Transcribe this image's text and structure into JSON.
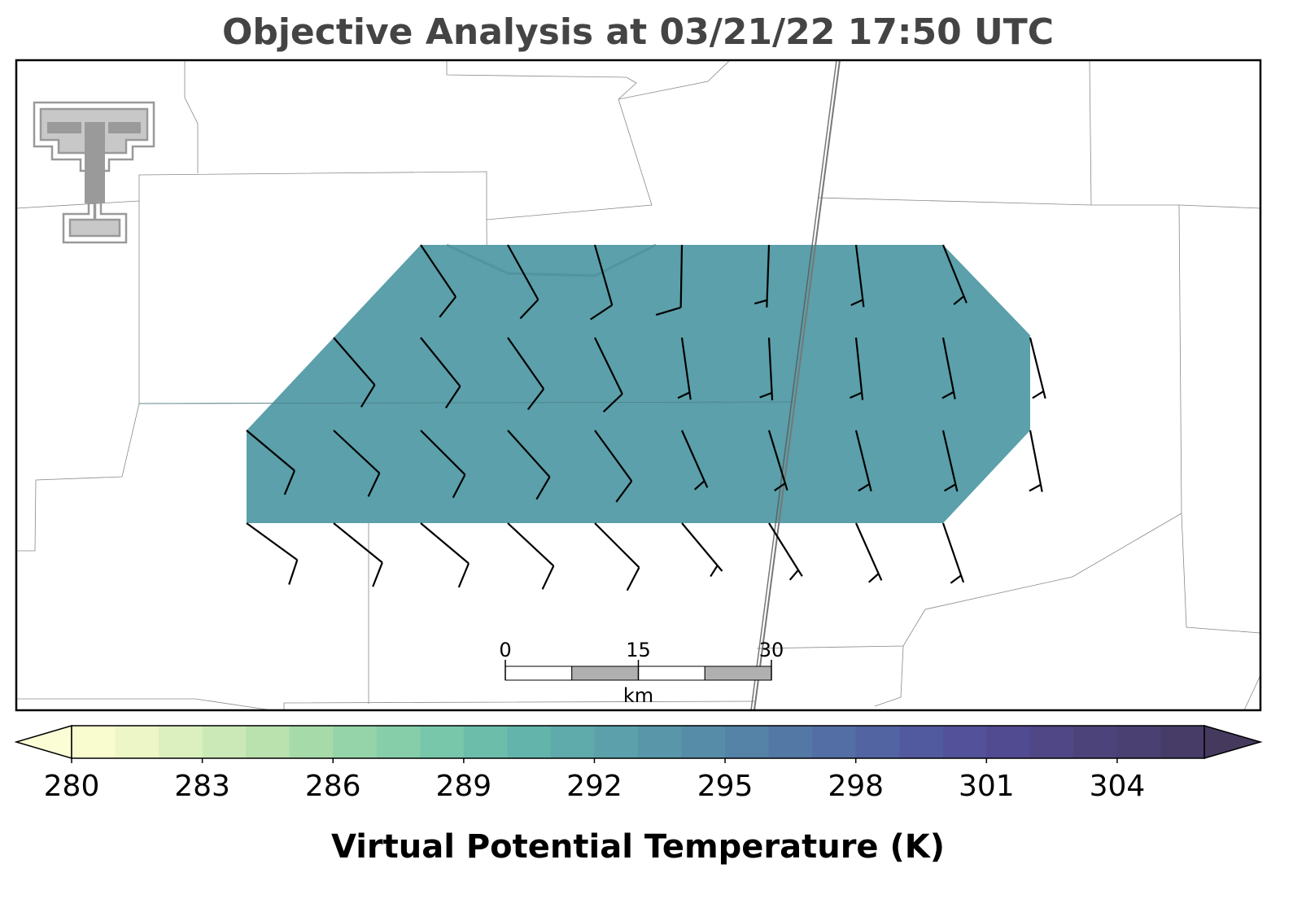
{
  "title": "Objective Analysis at 03/21/22 17:50 UTC",
  "field": {
    "value": 292
  },
  "wind_barbs": [
    [
      null,
      null,
      {
        "direction": 146,
        "speed": 10
      },
      {
        "direction": 151,
        "speed": 10
      },
      {
        "direction": 164,
        "speed": 10
      },
      {
        "direction": 181,
        "speed": 10
      },
      {
        "direction": 182,
        "speed": 5
      },
      {
        "direction": 173,
        "speed": 5
      },
      {
        "direction": 158,
        "speed": 5
      },
      null
    ],
    [
      null,
      {
        "direction": 139,
        "speed": 10
      },
      {
        "direction": 141,
        "speed": 10
      },
      {
        "direction": 145,
        "speed": 10
      },
      {
        "direction": 154,
        "speed": 10
      },
      {
        "direction": 172,
        "speed": 5
      },
      {
        "direction": 177,
        "speed": 5
      },
      {
        "direction": 174,
        "speed": 5
      },
      {
        "direction": 169,
        "speed": 5
      },
      {
        "direction": 166,
        "speed": 5
      }
    ],
    [
      {
        "direction": 130,
        "speed": 10
      },
      {
        "direction": 133,
        "speed": 10
      },
      {
        "direction": 135,
        "speed": 10
      },
      {
        "direction": 138,
        "speed": 10
      },
      {
        "direction": 144,
        "speed": 10
      },
      {
        "direction": 156,
        "speed": 5
      },
      {
        "direction": 163,
        "speed": 5
      },
      {
        "direction": 166,
        "speed": 5
      },
      {
        "direction": 167,
        "speed": 5
      },
      {
        "direction": 169,
        "speed": 5
      }
    ],
    [
      {
        "direction": 126,
        "speed": 10
      },
      {
        "direction": 129,
        "speed": 10
      },
      {
        "direction": 130,
        "speed": 10
      },
      {
        "direction": 133,
        "speed": 10
      },
      {
        "direction": 135,
        "speed": 10
      },
      {
        "direction": 140,
        "speed": 5
      },
      {
        "direction": 148,
        "speed": 5
      },
      {
        "direction": 156,
        "speed": 5
      },
      {
        "direction": 161,
        "speed": 5
      },
      null
    ]
  ],
  "scale_bar": {
    "ticks": [
      0,
      15,
      30
    ],
    "unit": "km"
  },
  "colorbar": {
    "label": "Virtual Potential Temperature (K)",
    "bins": [
      280,
      281,
      282,
      283,
      284,
      285,
      286,
      287,
      288,
      289,
      290,
      291,
      292,
      293,
      294,
      295,
      296,
      297,
      298,
      299,
      300,
      301,
      302,
      303,
      304,
      305,
      306
    ],
    "colors": [
      "#f9fcce",
      "#ecf6c6",
      "#dcf0bf",
      "#cbe9b7",
      "#b9e2af",
      "#a6dba9",
      "#95d4a8",
      "#86cea9",
      "#78c7ab",
      "#6cbeab",
      "#63b4ab",
      "#5faaab",
      "#5ba0aa",
      "#5996a9",
      "#578ca8",
      "#5582a7",
      "#5478a6",
      "#536ea4",
      "#5264a2",
      "#525a9f",
      "#52519a",
      "#514b91",
      "#4f4786",
      "#4c437b",
      "#4a4071",
      "#473c67"
    ],
    "under_color": "#fbfdd5",
    "over_color": "#453a5e",
    "ticks": [
      280,
      283,
      286,
      289,
      292,
      295,
      298,
      301,
      304
    ]
  }
}
